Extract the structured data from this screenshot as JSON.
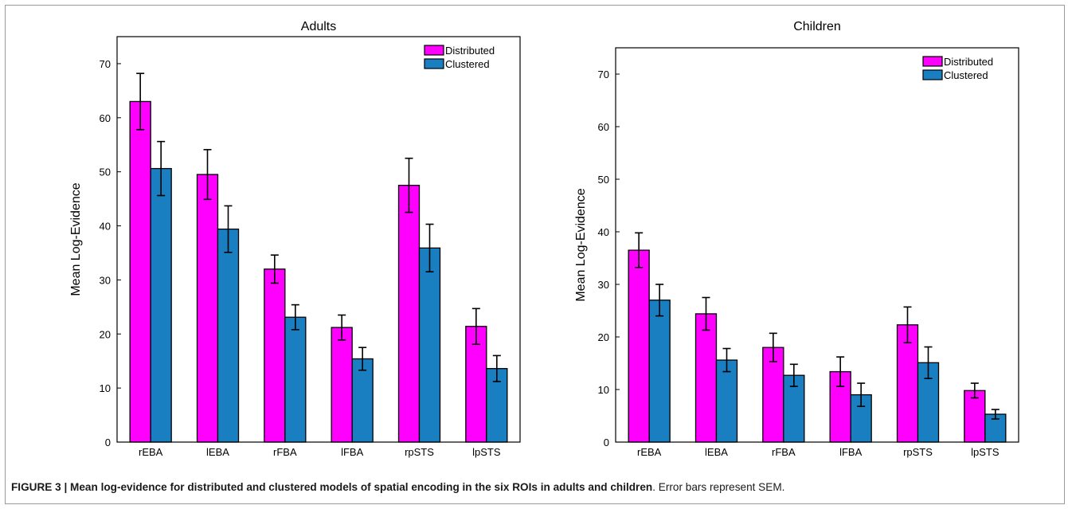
{
  "colors": {
    "distributed": "#ff00ff",
    "clustered": "#1a7fc1",
    "axis": "#000000",
    "frame": "#9a9a9a"
  },
  "chart_data": [
    {
      "type": "bar",
      "title": "Adults",
      "ylabel": "Mean Log-Evidence",
      "xlabel": "",
      "categories": [
        "rEBA",
        "lEBA",
        "rFBA",
        "lFBA",
        "rpSTS",
        "lpSTS"
      ],
      "ylim": [
        0,
        75
      ],
      "yticks": [
        0,
        10,
        20,
        30,
        40,
        50,
        60,
        70
      ],
      "legend": "top-right",
      "grid": false,
      "series": [
        {
          "name": "Distributed",
          "values": [
            63,
            49.5,
            32,
            21.2,
            47.5,
            21.4
          ],
          "errors": [
            5.2,
            4.6,
            2.6,
            2.3,
            5.0,
            3.3
          ]
        },
        {
          "name": "Clustered",
          "values": [
            50.6,
            39.4,
            23.1,
            15.4,
            35.9,
            13.6
          ],
          "errors": [
            5.0,
            4.3,
            2.3,
            2.1,
            4.4,
            2.4
          ]
        }
      ]
    },
    {
      "type": "bar",
      "title": "Children",
      "ylabel": "Mean Log-Evidence",
      "xlabel": "",
      "categories": [
        "rEBA",
        "lEBA",
        "rFBA",
        "lFBA",
        "rpSTS",
        "lpSTS"
      ],
      "ylim": [
        0,
        75
      ],
      "yticks": [
        0,
        10,
        20,
        30,
        40,
        50,
        60,
        70
      ],
      "legend": "top-right",
      "grid": false,
      "series": [
        {
          "name": "Distributed",
          "values": [
            36.5,
            24.4,
            18.0,
            13.4,
            22.3,
            9.8
          ],
          "errors": [
            3.3,
            3.1,
            2.7,
            2.8,
            3.4,
            1.4
          ]
        },
        {
          "name": "Clustered",
          "values": [
            27.0,
            15.6,
            12.7,
            9.0,
            15.1,
            5.3
          ],
          "errors": [
            3.0,
            2.2,
            2.1,
            2.2,
            3.0,
            0.9
          ]
        }
      ]
    }
  ],
  "caption": {
    "bold": "FIGURE 3 | Mean log-evidence for distributed and clustered models of spatial encoding in the six ROIs in adults and children",
    "rest": ". Error bars represent SEM."
  }
}
